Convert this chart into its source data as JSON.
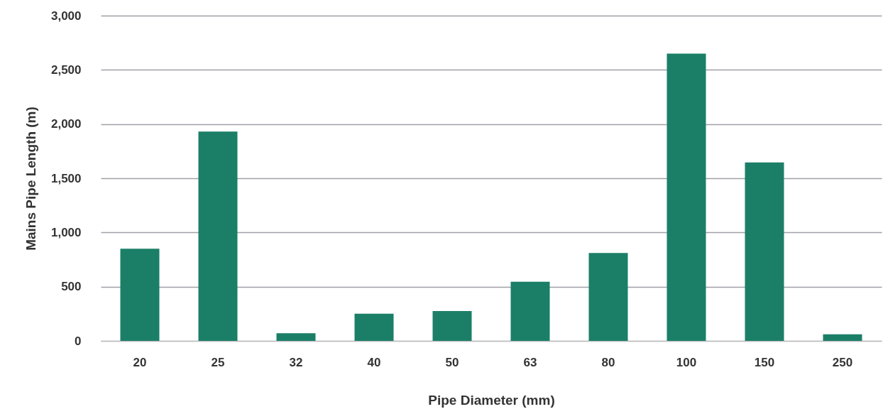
{
  "chart_data": {
    "type": "bar",
    "xlabel": "Pipe Diameter (mm)",
    "ylabel": "Mains Pipe Length (m)",
    "categories": [
      "20",
      "25",
      "32",
      "40",
      "50",
      "63",
      "80",
      "100",
      "150",
      "250"
    ],
    "values": [
      850,
      1930,
      70,
      250,
      275,
      545,
      810,
      2650,
      1645,
      60
    ],
    "color": "#1b7f68",
    "ylim": [
      0,
      3000
    ],
    "yticks": [
      0,
      500,
      {
        "value": 1000,
        "label": "1,000"
      },
      {
        "value": 1500,
        "label": "1,500"
      },
      {
        "value": 2000,
        "label": "2,000"
      },
      {
        "value": 2500,
        "label": "2,500"
      },
      {
        "value": 3000,
        "label": "3,000"
      }
    ],
    "grid": "y"
  }
}
